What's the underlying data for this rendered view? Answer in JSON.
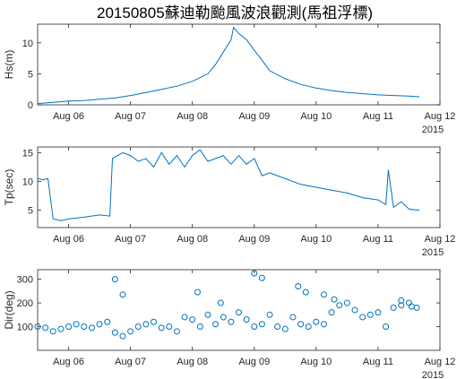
{
  "figure": {
    "title": "20150805蘇迪勒颱風波浪觀測(馬祖浮標)"
  },
  "chart_data": [
    {
      "type": "line",
      "ylabel": "Hs(m)",
      "year_label": "2015",
      "x_ticks": [
        "Aug 06",
        "Aug 07",
        "Aug 08",
        "Aug 09",
        "Aug 10",
        "Aug 11",
        "Aug 12"
      ],
      "x_range": [
        "2015-08-05 12:00",
        "2015-08-12 00:00"
      ],
      "y_ticks": [
        0,
        5,
        10
      ],
      "ylim": [
        0,
        13
      ],
      "series_color": "#0072BD",
      "series": [
        {
          "x": [
            "2015-08-05 12:00",
            "2015-08-05 18:00",
            "2015-08-06 00:00",
            "2015-08-06 06:00",
            "2015-08-06 12:00",
            "2015-08-06 18:00",
            "2015-08-07 00:00",
            "2015-08-07 06:00",
            "2015-08-07 12:00",
            "2015-08-07 18:00",
            "2015-08-08 00:00",
            "2015-08-08 06:00",
            "2015-08-08 09:00",
            "2015-08-08 12:00",
            "2015-08-08 15:00",
            "2015-08-08 16:00",
            "2015-08-08 18:00",
            "2015-08-08 21:00",
            "2015-08-09 00:00",
            "2015-08-09 03:00",
            "2015-08-09 06:00",
            "2015-08-09 12:00",
            "2015-08-09 18:00",
            "2015-08-10 00:00",
            "2015-08-10 06:00",
            "2015-08-10 12:00",
            "2015-08-10 18:00",
            "2015-08-11 00:00",
            "2015-08-11 06:00",
            "2015-08-11 12:00",
            "2015-08-11 16:00"
          ],
          "values": [
            0.2,
            0.4,
            0.6,
            0.7,
            0.9,
            1.1,
            1.5,
            2.0,
            2.5,
            3.0,
            3.8,
            5.0,
            6.5,
            8.5,
            10.5,
            12.5,
            11.5,
            10.5,
            8.8,
            7.2,
            5.5,
            4.2,
            3.3,
            2.7,
            2.3,
            2.0,
            1.8,
            1.6,
            1.5,
            1.4,
            1.3
          ]
        }
      ]
    },
    {
      "type": "line",
      "ylabel": "Tp(sec)",
      "year_label": "2015",
      "x_ticks": [
        "Aug 06",
        "Aug 07",
        "Aug 08",
        "Aug 09",
        "Aug 10",
        "Aug 11",
        "Aug 12"
      ],
      "x_range": [
        "2015-08-05 12:00",
        "2015-08-12 00:00"
      ],
      "y_ticks": [
        5,
        10,
        15
      ],
      "ylim": [
        2,
        16
      ],
      "series_color": "#0072BD",
      "series": [
        {
          "x": [
            "2015-08-05 12:00",
            "2015-08-05 14:00",
            "2015-08-05 16:00",
            "2015-08-05 18:00",
            "2015-08-05 21:00",
            "2015-08-06 00:00",
            "2015-08-06 06:00",
            "2015-08-06 12:00",
            "2015-08-06 16:00",
            "2015-08-06 17:00",
            "2015-08-06 21:00",
            "2015-08-07 00:00",
            "2015-08-07 03:00",
            "2015-08-07 06:00",
            "2015-08-07 09:00",
            "2015-08-07 12:00",
            "2015-08-07 15:00",
            "2015-08-07 18:00",
            "2015-08-07 21:00",
            "2015-08-08 00:00",
            "2015-08-08 03:00",
            "2015-08-08 06:00",
            "2015-08-08 09:00",
            "2015-08-08 12:00",
            "2015-08-08 15:00",
            "2015-08-08 18:00",
            "2015-08-08 21:00",
            "2015-08-09 00:00",
            "2015-08-09 03:00",
            "2015-08-09 06:00",
            "2015-08-09 12:00",
            "2015-08-09 18:00",
            "2015-08-10 00:00",
            "2015-08-10 06:00",
            "2015-08-10 12:00",
            "2015-08-10 18:00",
            "2015-08-11 00:00",
            "2015-08-11 03:00",
            "2015-08-11 04:00",
            "2015-08-11 06:00",
            "2015-08-11 09:00",
            "2015-08-11 12:00",
            "2015-08-11 16:00"
          ],
          "values": [
            10.5,
            10.3,
            10.5,
            3.5,
            3.2,
            3.5,
            3.8,
            4.2,
            4.0,
            14.0,
            15.0,
            14.5,
            13.5,
            14.0,
            12.5,
            15.0,
            13.0,
            14.5,
            12.5,
            14.5,
            15.5,
            13.5,
            14.0,
            14.5,
            13.0,
            14.5,
            13.0,
            14.0,
            11.0,
            11.5,
            10.5,
            9.5,
            9.0,
            8.5,
            8.0,
            7.2,
            6.8,
            6.0,
            12.0,
            5.5,
            6.5,
            5.2,
            5.0
          ]
        }
      ]
    },
    {
      "type": "scatter",
      "ylabel": "Dir(deg)",
      "year_label": "2015",
      "x_ticks": [
        "Aug 06",
        "Aug 07",
        "Aug 08",
        "Aug 09",
        "Aug 10",
        "Aug 11",
        "Aug 12"
      ],
      "x_range": [
        "2015-08-05 12:00",
        "2015-08-12 00:00"
      ],
      "y_ticks": [
        100,
        200,
        300
      ],
      "ylim": [
        0,
        340
      ],
      "series_color": "#0072BD",
      "series": [
        {
          "x": [
            "2015-08-05 12:00",
            "2015-08-05 15:00",
            "2015-08-05 18:00",
            "2015-08-05 21:00",
            "2015-08-06 00:00",
            "2015-08-06 03:00",
            "2015-08-06 06:00",
            "2015-08-06 09:00",
            "2015-08-06 12:00",
            "2015-08-06 15:00",
            "2015-08-06 18:00",
            "2015-08-06 21:00",
            "2015-08-07 00:00",
            "2015-08-07 03:00",
            "2015-08-07 06:00",
            "2015-08-07 09:00",
            "2015-08-07 12:00",
            "2015-08-07 15:00",
            "2015-08-07 18:00",
            "2015-08-07 21:00",
            "2015-08-08 00:00",
            "2015-08-08 03:00",
            "2015-08-08 06:00",
            "2015-08-08 09:00",
            "2015-08-08 12:00",
            "2015-08-08 15:00",
            "2015-08-08 18:00",
            "2015-08-08 21:00",
            "2015-08-09 00:00",
            "2015-08-09 03:00",
            "2015-08-09 06:00",
            "2015-08-09 09:00",
            "2015-08-09 12:00",
            "2015-08-09 15:00",
            "2015-08-09 18:00",
            "2015-08-09 21:00",
            "2015-08-10 00:00",
            "2015-08-10 03:00",
            "2015-08-10 06:00",
            "2015-08-10 09:00",
            "2015-08-10 12:00",
            "2015-08-10 15:00",
            "2015-08-10 18:00",
            "2015-08-10 21:00",
            "2015-08-11 00:00",
            "2015-08-11 03:00",
            "2015-08-11 06:00",
            "2015-08-11 09:00",
            "2015-08-11 12:00",
            "2015-08-11 15:00",
            "2015-08-06 18:00",
            "2015-08-06 21:00",
            "2015-08-08 02:00",
            "2015-08-08 11:00",
            "2015-08-09 00:00",
            "2015-08-09 03:00",
            "2015-08-09 17:00",
            "2015-08-09 20:00",
            "2015-08-10 03:00",
            "2015-08-10 07:00",
            "2015-08-11 09:00",
            "2015-08-11 13:00"
          ],
          "values": [
            100,
            95,
            80,
            90,
            100,
            110,
            100,
            95,
            110,
            120,
            75,
            60,
            80,
            100,
            110,
            120,
            95,
            100,
            80,
            140,
            130,
            100,
            150,
            110,
            140,
            120,
            160,
            130,
            100,
            110,
            150,
            100,
            90,
            140,
            110,
            100,
            120,
            110,
            160,
            190,
            200,
            170,
            140,
            150,
            160,
            100,
            180,
            190,
            200,
            180,
            300,
            235,
            245,
            200,
            325,
            305,
            270,
            245,
            235,
            215,
            210,
            185
          ]
        }
      ]
    }
  ]
}
